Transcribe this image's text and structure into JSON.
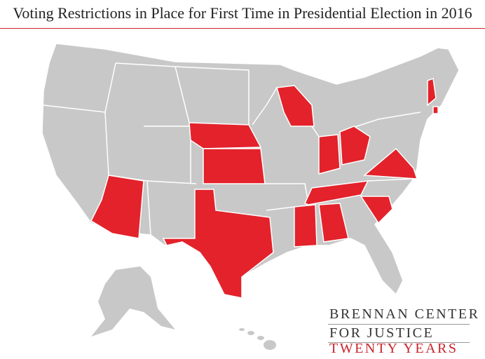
{
  "title": "Voting Restrictions in Place for First Time in Presidential Election in 2016",
  "brand": {
    "line1": "BRENNAN CENTER",
    "line2": "FOR JUSTICE",
    "line3": "TWENTY YEARS"
  }
}
